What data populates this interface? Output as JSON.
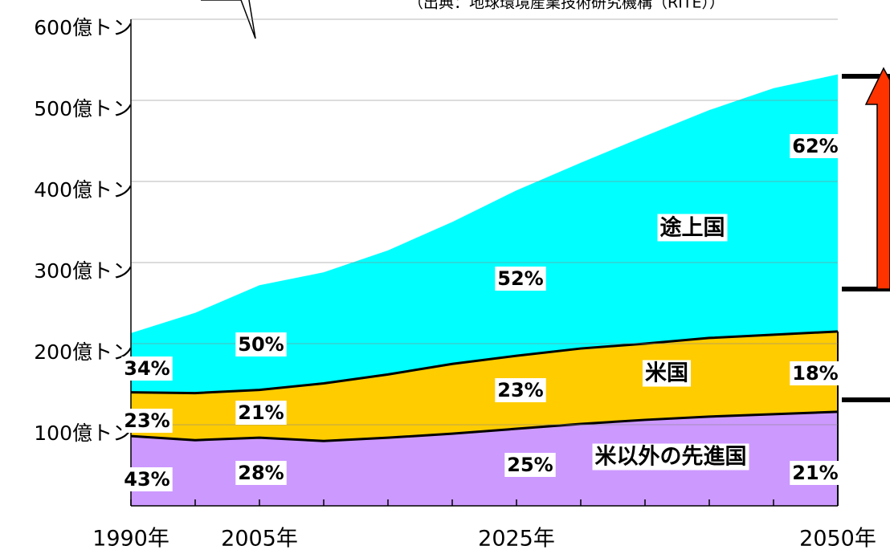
{
  "chart_data": {
    "type": "stacked_area",
    "source": "（出典：地球環境産業技術研究機構（RITE））",
    "categories": [
      "1990年",
      null,
      "2005年",
      null,
      null,
      null,
      "2025年",
      null,
      null,
      null,
      null,
      "2050年"
    ],
    "series": [
      {
        "name": "米以外の先進国",
        "color": "#cc99ff",
        "values": [
          86,
          81,
          84,
          80,
          84,
          89,
          95,
          101,
          106,
          110,
          113,
          116
        ]
      },
      {
        "name": "米国",
        "color": "#ffcc00",
        "values": [
          54,
          58,
          59,
          71,
          78,
          86,
          90,
          93,
          94,
          97,
          98,
          99
        ]
      },
      {
        "name": "途上国",
        "color": "#00ffff",
        "values": [
          73,
          99,
          129,
          137,
          153,
          175,
          204,
          229,
          256,
          281,
          304,
          317
        ]
      }
    ],
    "annotations": [
      "34%",
      "23%",
      "43%",
      "50%",
      "21%",
      "28%",
      "52%",
      "23%",
      "25%",
      "62%",
      "18%",
      "21%"
    ],
    "ylim": [
      0,
      600
    ],
    "yticks": [
      {
        "value": 100,
        "label": "100億トン"
      },
      {
        "value": 200,
        "label": "200億トン"
      },
      {
        "value": 300,
        "label": "300億トン"
      },
      {
        "value": 400,
        "label": "400億トン"
      },
      {
        "value": 500,
        "label": "500億トン"
      },
      {
        "value": 600,
        "label": "600億トン"
      }
    ],
    "grid": true
  }
}
